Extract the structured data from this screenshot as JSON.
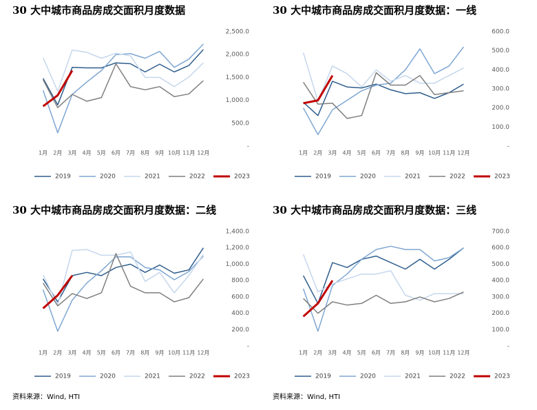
{
  "chart_data": [
    {
      "type": "line",
      "title": "30 大中城市商品房成交面积月度数据",
      "categories": [
        "1月",
        "2月",
        "3月",
        "4月",
        "5月",
        "6月",
        "7月",
        "8月",
        "9月",
        "10月",
        "11月",
        "12月"
      ],
      "ylim": [
        0,
        2500
      ],
      "yticks": [
        {
          "value": 0,
          "label": "-"
        },
        {
          "value": 500,
          "label": "500.0"
        },
        {
          "value": 1000,
          "label": "1,000.0"
        },
        {
          "value": 1500,
          "label": "1,500.0"
        },
        {
          "value": 2000,
          "label": "2,000.0"
        },
        {
          "value": 2500,
          "label": "2,500.0"
        }
      ],
      "series": [
        {
          "name": "2019",
          "color": "#2e5d8c",
          "values": [
            1480,
            900,
            1720,
            1710,
            1710,
            1820,
            1800,
            1620,
            1790,
            1620,
            1760,
            2110
          ]
        },
        {
          "name": "2020",
          "color": "#7ea6d3",
          "values": [
            1220,
            290,
            1130,
            1400,
            1650,
            2000,
            2020,
            1920,
            2070,
            1720,
            1900,
            2230
          ]
        },
        {
          "name": "2021",
          "color": "#c5d7ec",
          "values": [
            1930,
            1200,
            2100,
            2050,
            1920,
            2030,
            1970,
            1500,
            1500,
            1300,
            1510,
            1820
          ]
        },
        {
          "name": "2022",
          "color": "#7f7f7f",
          "values": [
            1450,
            840,
            1130,
            980,
            1060,
            1800,
            1300,
            1230,
            1300,
            1080,
            1140,
            1430
          ]
        },
        {
          "name": "2023",
          "color": "#c00000",
          "values": [
            870,
            1110,
            1650,
            null,
            null,
            null,
            null,
            null,
            null,
            null,
            null,
            null
          ]
        }
      ]
    },
    {
      "type": "line",
      "title": "30 大中城市商品房成交面积月度数据：一线",
      "categories": [
        "1月",
        "2月",
        "3月",
        "4月",
        "5月",
        "6月",
        "7月",
        "8月",
        "9月",
        "10月",
        "11月",
        "12月"
      ],
      "ylim": [
        0,
        600
      ],
      "yticks": [
        {
          "value": 0,
          "label": "-"
        },
        {
          "value": 100,
          "label": "100.0"
        },
        {
          "value": 200,
          "label": "200.0"
        },
        {
          "value": 300,
          "label": "300.0"
        },
        {
          "value": 400,
          "label": "400.0"
        },
        {
          "value": 500,
          "label": "500.0"
        },
        {
          "value": 600,
          "label": "600.0"
        }
      ],
      "series": [
        {
          "name": "2019",
          "color": "#2e5d8c",
          "values": [
            230,
            160,
            340,
            310,
            305,
            325,
            295,
            275,
            280,
            250,
            280,
            325
          ]
        },
        {
          "name": "2020",
          "color": "#7ea6d3",
          "values": [
            200,
            60,
            190,
            240,
            290,
            320,
            330,
            400,
            510,
            380,
            420,
            520
          ]
        },
        {
          "name": "2021",
          "color": "#c5d7ec",
          "values": [
            490,
            235,
            420,
            380,
            310,
            400,
            340,
            370,
            330,
            330,
            370,
            410
          ]
        },
        {
          "name": "2022",
          "color": "#7f7f7f",
          "values": [
            335,
            220,
            225,
            145,
            160,
            385,
            320,
            320,
            370,
            270,
            280,
            290
          ]
        },
        {
          "name": "2023",
          "color": "#c00000",
          "values": [
            225,
            240,
            370,
            null,
            null,
            null,
            null,
            null,
            null,
            null,
            null,
            null
          ]
        }
      ]
    },
    {
      "type": "line",
      "title": "30 大中城市商品房成交面积月度数据：二线",
      "categories": [
        "1月",
        "2月",
        "3月",
        "4月",
        "5月",
        "6月",
        "7月",
        "8月",
        "9月",
        "10月",
        "11月",
        "12月"
      ],
      "ylim": [
        0,
        1400
      ],
      "yticks": [
        {
          "value": 0,
          "label": "-"
        },
        {
          "value": 200,
          "label": "200.0"
        },
        {
          "value": 400,
          "label": "400.0"
        },
        {
          "value": 600,
          "label": "600.0"
        },
        {
          "value": 800,
          "label": "800.0"
        },
        {
          "value": 1000,
          "label": "1,000.0"
        },
        {
          "value": 1200,
          "label": "1,200.0"
        },
        {
          "value": 1400,
          "label": "1,400.0"
        }
      ],
      "series": [
        {
          "name": "2019",
          "color": "#2e5d8c",
          "values": [
            820,
            540,
            860,
            900,
            860,
            960,
            1000,
            900,
            990,
            890,
            930,
            1200
          ]
        },
        {
          "name": "2020",
          "color": "#7ea6d3",
          "values": [
            690,
            180,
            560,
            770,
            920,
            1090,
            1090,
            960,
            930,
            810,
            910,
            1100
          ]
        },
        {
          "name": "2021",
          "color": "#c5d7ec",
          "values": [
            870,
            500,
            1170,
            1180,
            1110,
            1110,
            1150,
            790,
            900,
            650,
            860,
            1120
          ]
        },
        {
          "name": "2022",
          "color": "#7f7f7f",
          "values": [
            770,
            490,
            640,
            580,
            650,
            1130,
            730,
            650,
            650,
            540,
            590,
            820
          ]
        },
        {
          "name": "2023",
          "color": "#c00000",
          "values": [
            460,
            620,
            860,
            null,
            null,
            null,
            null,
            null,
            null,
            null,
            null,
            null
          ]
        }
      ],
      "source": "资料来源：Wind, HTI"
    },
    {
      "type": "line",
      "title": "30 大中城市商品房成交面积月度数据：三线",
      "categories": [
        "1月",
        "2月",
        "3月",
        "4月",
        "5月",
        "6月",
        "7月",
        "8月",
        "9月",
        "10月",
        "11月",
        "12月"
      ],
      "ylim": [
        0,
        700
      ],
      "yticks": [
        {
          "value": 0,
          "label": "-"
        },
        {
          "value": 100,
          "label": "100.0"
        },
        {
          "value": 200,
          "label": "200.0"
        },
        {
          "value": 300,
          "label": "300.0"
        },
        {
          "value": 400,
          "label": "400.0"
        },
        {
          "value": 500,
          "label": "500.0"
        },
        {
          "value": 600,
          "label": "600.0"
        },
        {
          "value": 700,
          "label": "700.0"
        }
      ],
      "series": [
        {
          "name": "2019",
          "color": "#2e5d8c",
          "values": [
            430,
            260,
            510,
            480,
            530,
            550,
            510,
            470,
            530,
            470,
            530,
            600
          ]
        },
        {
          "name": "2020",
          "color": "#7ea6d3",
          "values": [
            350,
            90,
            370,
            440,
            530,
            590,
            610,
            590,
            590,
            520,
            540,
            600
          ]
        },
        {
          "name": "2021",
          "color": "#c5d7ec",
          "values": [
            560,
            330,
            380,
            410,
            440,
            440,
            460,
            310,
            280,
            320,
            320,
            320
          ]
        },
        {
          "name": "2022",
          "color": "#7f7f7f",
          "values": [
            290,
            200,
            270,
            250,
            260,
            310,
            260,
            270,
            300,
            270,
            290,
            330
          ]
        },
        {
          "name": "2023",
          "color": "#c00000",
          "values": [
            180,
            260,
            400,
            null,
            null,
            null,
            null,
            null,
            null,
            null,
            null,
            null
          ]
        }
      ],
      "source": "资料来源：Wind, HTI"
    }
  ]
}
